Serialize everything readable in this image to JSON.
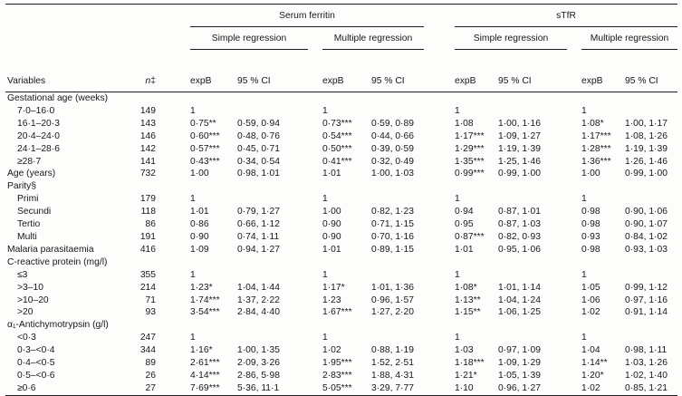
{
  "table": {
    "groups": [
      {
        "label": "Serum ferritin",
        "subgroups": [
          "Simple regression",
          "Multiple regression"
        ]
      },
      {
        "label": "sTfR",
        "subgroups": [
          "Simple regression",
          "Multiple regression"
        ]
      }
    ],
    "columns": {
      "variables": "Variables",
      "n": "n",
      "n_marker": "‡",
      "expB": "expB",
      "ci": "95 % CI"
    },
    "rows": [
      {
        "group": "Gestational age (weeks)"
      },
      {
        "label": "7·0–16·0",
        "indent": true,
        "n": "149",
        "values": [
          "1",
          "",
          "1",
          "",
          "1",
          "",
          "1",
          ""
        ]
      },
      {
        "label": "16·1–20·3",
        "indent": true,
        "n": "143",
        "values": [
          "0·75**",
          "0·59, 0·94",
          "0·73***",
          "0·59, 0·89",
          "1·08",
          "1·00, 1·16",
          "1·08*",
          "1·00, 1·17"
        ]
      },
      {
        "label": "20·4–24·0",
        "indent": true,
        "n": "146",
        "values": [
          "0·60***",
          "0·48, 0·76",
          "0·54***",
          "0·44, 0·66",
          "1·17***",
          "1·09, 1·27",
          "1·17***",
          "1·08, 1·26"
        ]
      },
      {
        "label": "24·1–28·6",
        "indent": true,
        "n": "142",
        "values": [
          "0·57***",
          "0·45, 0·71",
          "0·50***",
          "0·39, 0·59",
          "1·29***",
          "1·19, 1·39",
          "1·28***",
          "1·19, 1·39"
        ]
      },
      {
        "label": "≥28·7",
        "indent": true,
        "n": "141",
        "values": [
          "0·43***",
          "0·34, 0·54",
          "0·41***",
          "0·32, 0·49",
          "1·35***",
          "1·25, 1·46",
          "1·36***",
          "1·26, 1·46"
        ]
      },
      {
        "label": "Age (years)",
        "n": "732",
        "values": [
          "1·00",
          "0·98, 1·01",
          "1·01",
          "1·00, 1·03",
          "0·99***",
          "0·99, 1·00",
          "1·00",
          "0·99, 1·00"
        ]
      },
      {
        "group": "Parity§"
      },
      {
        "label": "Primi",
        "indent": true,
        "n": "179",
        "values": [
          "1",
          "",
          "1",
          "",
          "1",
          "",
          "1",
          ""
        ]
      },
      {
        "label": "Secundi",
        "indent": true,
        "n": "118",
        "values": [
          "1·01",
          "0·79, 1·27",
          "1·00",
          "0·82, 1·23",
          "0·94",
          "0·87, 1·01",
          "0·98",
          "0·90, 1·06"
        ]
      },
      {
        "label": "Tertio",
        "indent": true,
        "n": "86",
        "values": [
          "0·86",
          "0·66, 1·12",
          "0·90",
          "0·71, 1·15",
          "0·95",
          "0·87, 1·03",
          "0·98",
          "0·90, 1·07"
        ]
      },
      {
        "label": "Multi",
        "indent": true,
        "n": "191",
        "values": [
          "0·90",
          "0·74, 1·11",
          "0·90",
          "0·70, 1·16",
          "0·87***",
          "0·82, 0·93",
          "0·93",
          "0·84, 1·02"
        ]
      },
      {
        "label": "Malaria parasitaemia",
        "n": "416",
        "values": [
          "1·09",
          "0·94, 1·27",
          "1·01",
          "0·89, 1·15",
          "1·01",
          "0·95, 1·06",
          "0·98",
          "0·93, 1·03"
        ]
      },
      {
        "group": "C-reactive protein (mg/l)"
      },
      {
        "label": "≤3",
        "indent": true,
        "n": "355",
        "values": [
          "1",
          "",
          "1",
          "",
          "1",
          "",
          "1",
          ""
        ]
      },
      {
        "label": ">3–10",
        "indent": true,
        "n": "214",
        "values": [
          "1·23*",
          "1·04, 1·44",
          "1·17*",
          "1·01, 1·36",
          "1·08*",
          "1·01, 1·14",
          "1·05",
          "0·99, 1·12"
        ]
      },
      {
        "label": ">10–20",
        "indent": true,
        "n": "71",
        "values": [
          "1·74***",
          "1·37, 2·22",
          "1·23",
          "0·96, 1·57",
          "1·13**",
          "1·04, 1·24",
          "1·06",
          "0·97, 1·16"
        ]
      },
      {
        "label": ">20",
        "indent": true,
        "n": "93",
        "values": [
          "3·54***",
          "2·84, 4·40",
          "1·67***",
          "1·27, 2·20",
          "1·15**",
          "1·06, 1·25",
          "1·02",
          "0·91, 1·14"
        ]
      },
      {
        "group": "α₁-Antichymotrypsin (g/l)"
      },
      {
        "label": "<0·3",
        "indent": true,
        "n": "247",
        "values": [
          "1",
          "",
          "1",
          "",
          "1",
          "",
          "1",
          ""
        ]
      },
      {
        "label": "0·3–<0·4",
        "indent": true,
        "n": "344",
        "values": [
          "1·16*",
          "1·00, 1·35",
          "1·02",
          "0·88, 1·19",
          "1·03",
          "0·97, 1·09",
          "1·04",
          "0·98, 1·11"
        ]
      },
      {
        "label": "0·4–<0·5",
        "indent": true,
        "n": "89",
        "values": [
          "2·61***",
          "2·09, 3·26",
          "1·95***",
          "1·52, 2·51",
          "1·18***",
          "1·09, 1·29",
          "1·14**",
          "1·03, 1·26"
        ]
      },
      {
        "label": "0·5–<0·6",
        "indent": true,
        "n": "26",
        "values": [
          "4·14***",
          "2·86, 5·98",
          "2·83***",
          "1·88, 4·31",
          "1·21*",
          "1·05, 1·39",
          "1·20*",
          "1·02, 1·40"
        ]
      },
      {
        "label": "≥0·6",
        "indent": true,
        "n": "27",
        "values": [
          "7·69***",
          "5·36, 11·1",
          "5·05***",
          "3·29, 7·77",
          "1·10",
          "0·96, 1·27",
          "1·02",
          "0·85, 1·21"
        ]
      }
    ]
  }
}
